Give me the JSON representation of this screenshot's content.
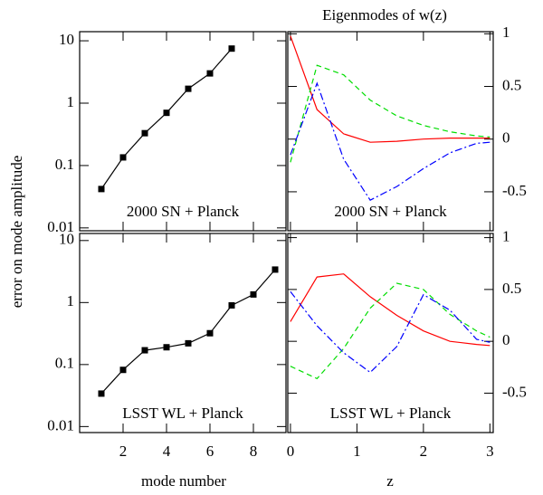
{
  "chart_data": [
    {
      "type": "line",
      "ylabel": "error on mode amplitude",
      "label": "2000 SN + Planck",
      "log_y": true,
      "markers": true,
      "xlim": [
        0,
        9.5
      ],
      "xticks": [
        2,
        4,
        6,
        8
      ],
      "ylim": [
        0.009,
        14
      ],
      "yticks": [
        0.01,
        0.1,
        1,
        10
      ],
      "x": [
        1,
        2,
        3,
        4,
        5,
        6,
        7
      ],
      "series": [
        {
          "color": "#000000",
          "style": "solid",
          "values": [
            0.042,
            0.135,
            0.33,
            0.7,
            1.7,
            3.0,
            7.5
          ]
        }
      ]
    },
    {
      "type": "line",
      "title": "Eigenmodes of w(z)",
      "label": "2000 SN + Planck",
      "xlim": [
        -0.04,
        3.05
      ],
      "xticks": [
        0,
        1,
        2,
        3
      ],
      "ylim": [
        -0.87,
        1.02
      ],
      "yticks": [
        -0.5,
        0,
        0.5,
        1
      ],
      "x": [
        0,
        0.4,
        0.8,
        1.2,
        1.6,
        2.0,
        2.4,
        2.8,
        3.0
      ],
      "series": [
        {
          "color": "#ff0000",
          "style": "solid",
          "values": [
            0.98,
            0.28,
            0.05,
            -0.03,
            -0.02,
            0,
            0.01,
            0.01,
            0.01
          ]
        },
        {
          "color": "#00dd00",
          "style": "dashed",
          "values": [
            -0.22,
            0.7,
            0.61,
            0.37,
            0.22,
            0.13,
            0.07,
            0.03,
            0.02
          ]
        },
        {
          "color": "#0000ff",
          "style": "dashdot",
          "values": [
            -0.15,
            0.53,
            -0.19,
            -0.58,
            -0.45,
            -0.28,
            -0.13,
            -0.04,
            -0.03
          ]
        }
      ]
    },
    {
      "type": "line",
      "xlabel": "mode number",
      "label": "LSST WL + Planck",
      "log_y": true,
      "markers": true,
      "xlim": [
        0,
        9.5
      ],
      "xticks": [
        2,
        4,
        6,
        8
      ],
      "ylim": [
        0.008,
        13
      ],
      "yticks": [
        0.01,
        0.1,
        1,
        10
      ],
      "x": [
        1,
        2,
        3,
        4,
        5,
        6,
        7,
        8,
        9
      ],
      "series": [
        {
          "color": "#000000",
          "style": "solid",
          "values": [
            0.034,
            0.082,
            0.17,
            0.19,
            0.22,
            0.32,
            0.9,
            1.35,
            3.4
          ]
        }
      ]
    },
    {
      "type": "line",
      "xlabel": "z",
      "label": "LSST WL + Planck",
      "xlim": [
        -0.04,
        3.05
      ],
      "xticks": [
        0,
        1,
        2,
        3
      ],
      "ylim": [
        -0.88,
        1.04
      ],
      "yticks": [
        -0.5,
        0,
        0.5,
        1
      ],
      "x": [
        0,
        0.4,
        0.8,
        1.2,
        1.6,
        2.0,
        2.4,
        2.8,
        3.0
      ],
      "series": [
        {
          "color": "#ff0000",
          "style": "solid",
          "values": [
            0.19,
            0.62,
            0.65,
            0.43,
            0.25,
            0.1,
            0,
            -0.03,
            -0.04
          ]
        },
        {
          "color": "#00dd00",
          "style": "dashed",
          "values": [
            -0.24,
            -0.36,
            -0.07,
            0.32,
            0.56,
            0.5,
            0.26,
            0.1,
            0.04
          ]
        },
        {
          "color": "#0000ff",
          "style": "dashdot",
          "values": [
            0.48,
            0.15,
            -0.11,
            -0.3,
            -0.05,
            0.45,
            0.3,
            0.02,
            -0.01
          ]
        }
      ]
    }
  ]
}
